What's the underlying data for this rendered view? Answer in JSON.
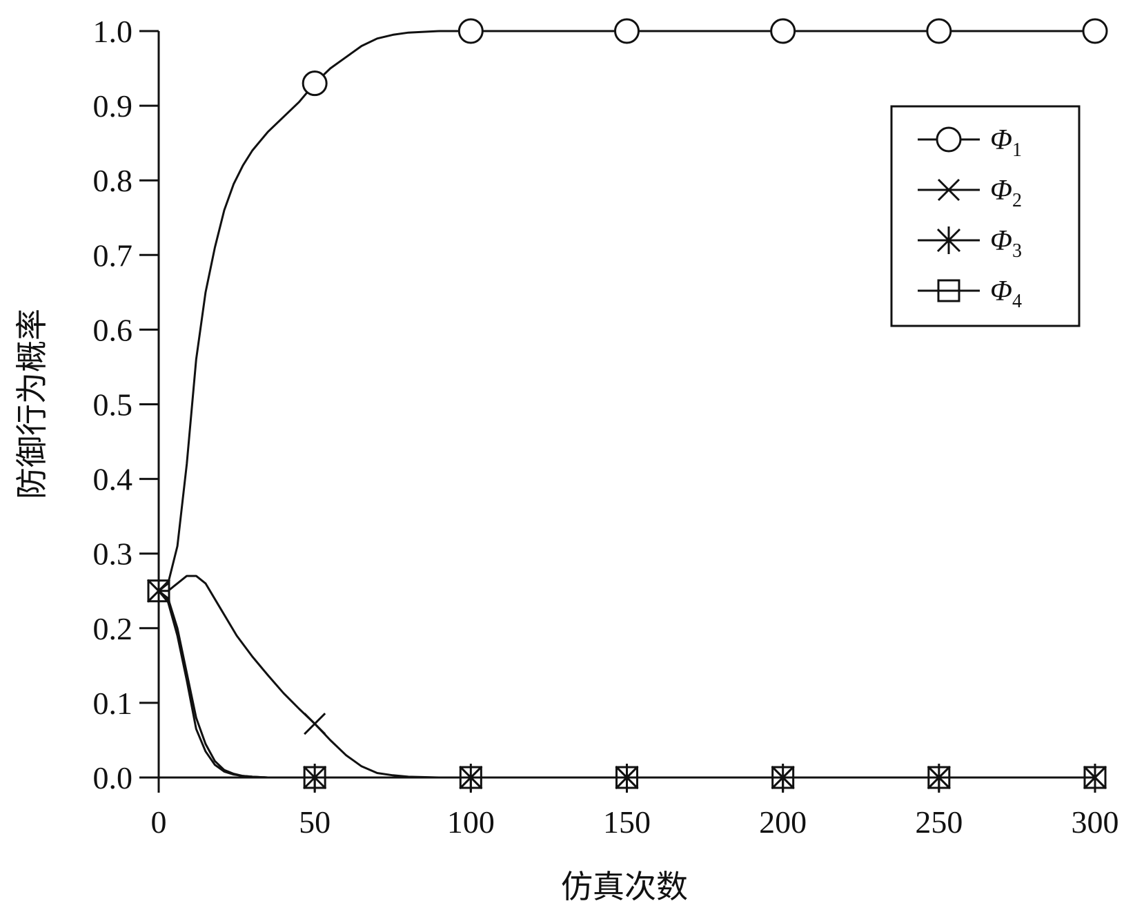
{
  "chart_data": {
    "type": "line",
    "title": "",
    "xlabel": "仿真次数",
    "ylabel": "防御行为概率",
    "xlim": [
      0,
      300
    ],
    "ylim": [
      0,
      1.0
    ],
    "x_ticks": [
      "0",
      "50",
      "100",
      "150",
      "200",
      "250",
      "300"
    ],
    "y_ticks": [
      "0.0",
      "0.1",
      "0.2",
      "0.3",
      "0.4",
      "0.5",
      "0.6",
      "0.7",
      "0.8",
      "0.9",
      "1.0"
    ],
    "grid": false,
    "legend_position": "top-right",
    "series": [
      {
        "name": "Φ1",
        "legend_main": "Φ",
        "legend_sub": "1",
        "marker": "circle",
        "x": [
          0,
          3,
          6,
          9,
          12,
          15,
          18,
          21,
          24,
          27,
          30,
          35,
          40,
          45,
          50,
          55,
          60,
          65,
          70,
          75,
          80,
          90,
          100,
          150,
          200,
          250,
          300
        ],
        "y": [
          0.25,
          0.26,
          0.31,
          0.42,
          0.56,
          0.65,
          0.71,
          0.76,
          0.795,
          0.82,
          0.84,
          0.865,
          0.885,
          0.905,
          0.93,
          0.95,
          0.965,
          0.98,
          0.99,
          0.995,
          0.998,
          1.0,
          1.0,
          1.0,
          1.0,
          1.0,
          1.0
        ],
        "marker_x": [
          50,
          100,
          150,
          200,
          250,
          300
        ],
        "marker_y": [
          0.93,
          1.0,
          1.0,
          1.0,
          1.0,
          1.0
        ]
      },
      {
        "name": "Φ2",
        "legend_main": "Φ",
        "legend_sub": "2",
        "marker": "x",
        "x": [
          0,
          3,
          6,
          9,
          12,
          15,
          20,
          25,
          30,
          35,
          40,
          45,
          50,
          55,
          60,
          65,
          70,
          75,
          80,
          90,
          100,
          150,
          200,
          250,
          300
        ],
        "y": [
          0.25,
          0.25,
          0.26,
          0.27,
          0.27,
          0.26,
          0.225,
          0.19,
          0.162,
          0.137,
          0.113,
          0.092,
          0.072,
          0.05,
          0.03,
          0.015,
          0.006,
          0.003,
          0.001,
          0.0,
          0.0,
          0.0,
          0.0,
          0.0,
          0.0
        ],
        "marker_x": [
          0,
          50,
          100,
          150,
          200,
          250,
          300
        ],
        "marker_y": [
          0.25,
          0.072,
          0.0,
          0.0,
          0.0,
          0.0,
          0.0
        ]
      },
      {
        "name": "Φ3",
        "legend_main": "Φ",
        "legend_sub": "3",
        "marker": "asterisk",
        "x": [
          0,
          3,
          6,
          9,
          12,
          15,
          18,
          21,
          24,
          27,
          30,
          35,
          40,
          50,
          100,
          150,
          200,
          250,
          300
        ],
        "y": [
          0.25,
          0.24,
          0.2,
          0.14,
          0.08,
          0.045,
          0.022,
          0.01,
          0.005,
          0.002,
          0.001,
          0.0,
          0.0,
          0.0,
          0.0,
          0.0,
          0.0,
          0.0,
          0.0
        ],
        "marker_x": [
          0,
          50,
          100,
          150,
          200,
          250,
          300
        ],
        "marker_y": [
          0.25,
          0.0,
          0.0,
          0.0,
          0.0,
          0.0,
          0.0
        ]
      },
      {
        "name": "Φ4",
        "legend_main": "Φ",
        "legend_sub": "4",
        "marker": "square",
        "x": [
          0,
          3,
          6,
          9,
          12,
          15,
          18,
          21,
          24,
          27,
          30,
          35,
          40,
          50,
          100,
          150,
          200,
          250,
          300
        ],
        "y": [
          0.25,
          0.235,
          0.19,
          0.13,
          0.065,
          0.035,
          0.017,
          0.008,
          0.004,
          0.002,
          0.001,
          0.0,
          0.0,
          0.0,
          0.0,
          0.0,
          0.0,
          0.0,
          0.0
        ],
        "marker_x": [
          0,
          50,
          100,
          150,
          200,
          250,
          300
        ],
        "marker_y": [
          0.25,
          0.0,
          0.0,
          0.0,
          0.0,
          0.0,
          0.0
        ]
      }
    ]
  }
}
